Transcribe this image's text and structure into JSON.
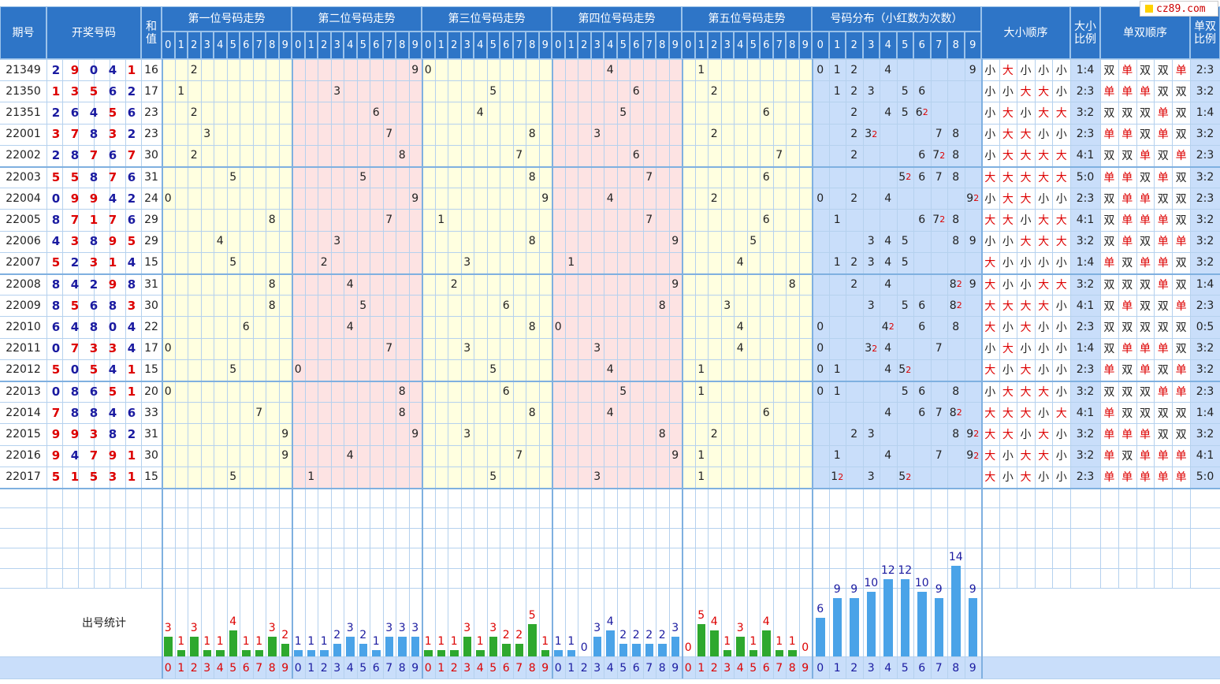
{
  "site_logo": "cz89.com",
  "headers": {
    "period": "期号",
    "draw_numbers": "开奖号码",
    "sum": "和\n值",
    "pos1": "第一位号码走势",
    "pos2": "第二位号码走势",
    "pos3": "第三位号码走势",
    "pos4": "第四位号码走势",
    "pos5": "第五位号码走势",
    "distribution": "号码分布（小红数为次数）",
    "size_order": "大小顺序",
    "size_ratio": "大小\n比例",
    "parity_order": "单双顺序",
    "parity_ratio": "单双\n比例"
  },
  "digits": [
    "0",
    "1",
    "2",
    "3",
    "4",
    "5",
    "6",
    "7",
    "8",
    "9"
  ],
  "labels": {
    "big": "大",
    "small": "小",
    "odd": "单",
    "even": "双"
  },
  "stats_label": "出号统计",
  "colors": {
    "header_bg": "#2e75c7",
    "accent_red": "#dd0000",
    "number_blue": "#1a1aa0",
    "bar_green": "#2ea82e",
    "bar_blue": "#4aa3e8",
    "band_yellow": "#ffffe0",
    "band_pink": "#fde3e3",
    "band_blue": "#c9defa"
  },
  "draws": [
    {
      "period": "21349",
      "numbers": [
        2,
        9,
        0,
        4,
        1
      ],
      "sum": "16",
      "size_ratio": "1:4",
      "parity_ratio": "2:3"
    },
    {
      "period": "21350",
      "numbers": [
        1,
        3,
        5,
        6,
        2
      ],
      "sum": "17",
      "size_ratio": "2:3",
      "parity_ratio": "3:2"
    },
    {
      "period": "21351",
      "numbers": [
        2,
        6,
        4,
        5,
        6
      ],
      "sum": "23",
      "size_ratio": "3:2",
      "parity_ratio": "1:4"
    },
    {
      "period": "22001",
      "numbers": [
        3,
        7,
        8,
        3,
        2
      ],
      "sum": "23",
      "size_ratio": "2:3",
      "parity_ratio": "3:2"
    },
    {
      "period": "22002",
      "numbers": [
        2,
        8,
        7,
        6,
        7
      ],
      "sum": "30",
      "size_ratio": "4:1",
      "parity_ratio": "2:3"
    },
    {
      "period": "22003",
      "numbers": [
        5,
        5,
        8,
        7,
        6
      ],
      "sum": "31",
      "size_ratio": "5:0",
      "parity_ratio": "3:2"
    },
    {
      "period": "22004",
      "numbers": [
        0,
        9,
        9,
        4,
        2
      ],
      "sum": "24",
      "size_ratio": "2:3",
      "parity_ratio": "2:3"
    },
    {
      "period": "22005",
      "numbers": [
        8,
        7,
        1,
        7,
        6
      ],
      "sum": "29",
      "size_ratio": "4:1",
      "parity_ratio": "3:2"
    },
    {
      "period": "22006",
      "numbers": [
        4,
        3,
        8,
        9,
        5
      ],
      "sum": "29",
      "size_ratio": "3:2",
      "parity_ratio": "3:2"
    },
    {
      "period": "22007",
      "numbers": [
        5,
        2,
        3,
        1,
        4
      ],
      "sum": "15",
      "size_ratio": "1:4",
      "parity_ratio": "3:2"
    },
    {
      "period": "22008",
      "numbers": [
        8,
        4,
        2,
        9,
        8
      ],
      "sum": "31",
      "size_ratio": "3:2",
      "parity_ratio": "1:4"
    },
    {
      "period": "22009",
      "numbers": [
        8,
        5,
        6,
        8,
        3
      ],
      "sum": "30",
      "size_ratio": "4:1",
      "parity_ratio": "2:3"
    },
    {
      "period": "22010",
      "numbers": [
        6,
        4,
        8,
        0,
        4
      ],
      "sum": "22",
      "size_ratio": "2:3",
      "parity_ratio": "0:5"
    },
    {
      "period": "22011",
      "numbers": [
        0,
        7,
        3,
        3,
        4
      ],
      "sum": "17",
      "size_ratio": "1:4",
      "parity_ratio": "3:2"
    },
    {
      "period": "22012",
      "numbers": [
        5,
        0,
        5,
        4,
        1
      ],
      "sum": "15",
      "size_ratio": "2:3",
      "parity_ratio": "3:2"
    },
    {
      "period": "22013",
      "numbers": [
        0,
        8,
        6,
        5,
        1
      ],
      "sum": "20",
      "size_ratio": "3:2",
      "parity_ratio": "2:3"
    },
    {
      "period": "22014",
      "numbers": [
        7,
        8,
        8,
        4,
        6
      ],
      "sum": "33",
      "size_ratio": "4:1",
      "parity_ratio": "1:4"
    },
    {
      "period": "22015",
      "numbers": [
        9,
        9,
        3,
        8,
        2
      ],
      "sum": "31",
      "size_ratio": "3:2",
      "parity_ratio": "3:2"
    },
    {
      "period": "22016",
      "numbers": [
        9,
        4,
        7,
        9,
        1
      ],
      "sum": "30",
      "size_ratio": "3:2",
      "parity_ratio": "4:1"
    },
    {
      "period": "22017",
      "numbers": [
        5,
        1,
        5,
        3,
        1
      ],
      "sum": "15",
      "size_ratio": "2:3",
      "parity_ratio": "5:0"
    }
  ],
  "position_stats": [
    [
      3,
      1,
      3,
      1,
      1,
      4,
      1,
      1,
      3,
      2
    ],
    [
      1,
      1,
      1,
      2,
      3,
      2,
      1,
      3,
      3,
      3
    ],
    [
      1,
      1,
      1,
      3,
      1,
      3,
      2,
      2,
      5,
      1
    ],
    [
      1,
      1,
      0,
      3,
      4,
      2,
      2,
      2,
      2,
      3
    ],
    [
      0,
      5,
      4,
      1,
      3,
      1,
      4,
      1,
      1,
      0
    ]
  ],
  "distribution_stats": [
    6,
    9,
    9,
    10,
    12,
    12,
    10,
    9,
    14,
    9
  ]
}
